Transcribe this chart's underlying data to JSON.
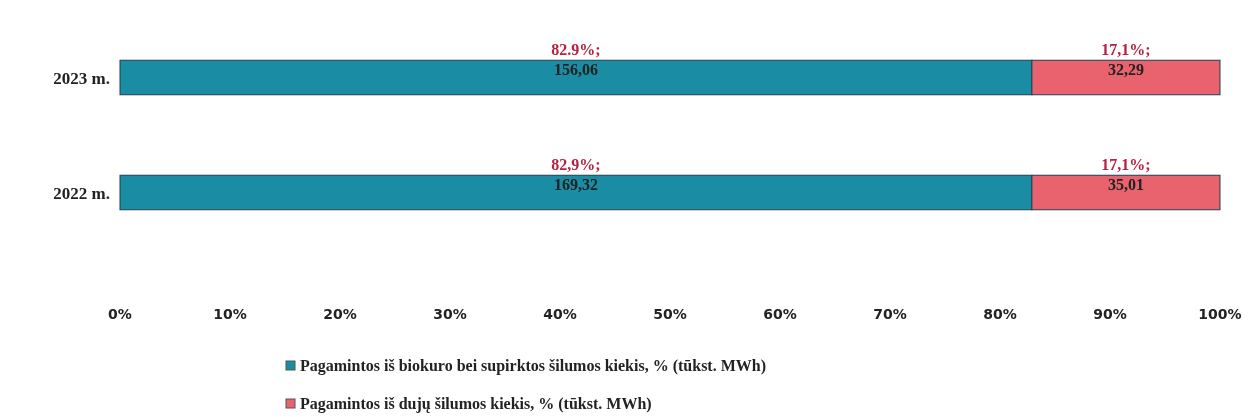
{
  "chart_data": {
    "type": "bar",
    "orientation": "horizontal",
    "stacked": true,
    "categories": [
      "2023 m.",
      "2022 m."
    ],
    "series": [
      {
        "name": "Pagamintos iš biokuro bei supirktos šilumos kiekis, % (tūkst. MWh)",
        "color": "#1a8ca3",
        "values": [
          82.9,
          82.9
        ],
        "value_labels": [
          "82.9%;\n156,06",
          "82,9%;\n169,32"
        ]
      },
      {
        "name": "Pagamintos iš dujų šilumos kiekis, % (tūkst. MWh)",
        "color": "#e8636e",
        "values": [
          17.1,
          17.1
        ],
        "value_labels": [
          "17,1%;\n32,29",
          "17,1%;\n35,01"
        ]
      }
    ],
    "xlim": [
      0,
      100
    ],
    "xticks": [
      {
        "value": 0,
        "label": "0%"
      },
      {
        "value": 10,
        "label": "10%"
      },
      {
        "value": 20,
        "label": "20%"
      },
      {
        "value": 30,
        "label": "30%"
      },
      {
        "value": 40,
        "label": "40%"
      },
      {
        "value": 50,
        "label": "50%"
      },
      {
        "value": 60,
        "label": "60%"
      },
      {
        "value": 70,
        "label": "70%"
      },
      {
        "value": 80,
        "label": "80%"
      },
      {
        "value": 90,
        "label": "90%"
      },
      {
        "value": 100,
        "label": "100%"
      }
    ],
    "grid": false,
    "legend": "bottom"
  }
}
